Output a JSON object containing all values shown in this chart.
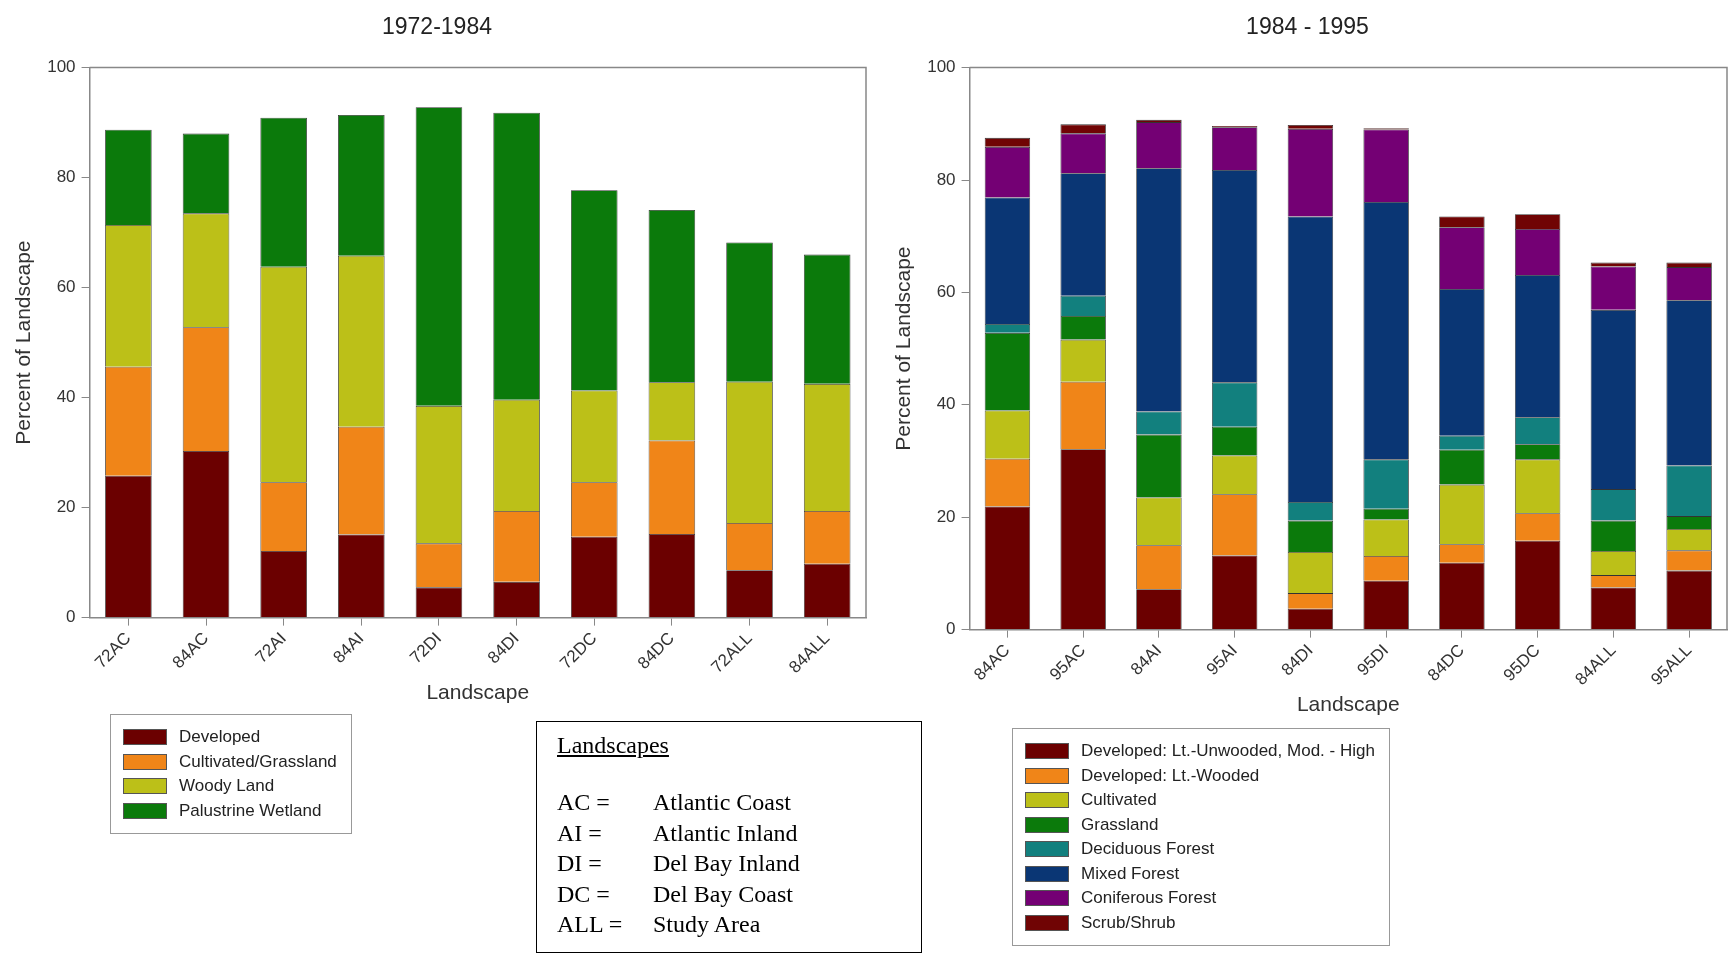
{
  "chart_data": [
    {
      "type": "bar",
      "title": "1972-1984",
      "xlabel": "Landscape",
      "ylabel": "Percent of Landscape",
      "stacked": true,
      "legend": "bottom left",
      "categories": [
        "72AC",
        "84AC",
        "72AI",
        "84AI",
        "72DI",
        "84DI",
        "72DC",
        "84DC",
        "72ALL",
        "84ALL"
      ],
      "ylim": [
        0,
        100
      ],
      "yticks": [
        0,
        20,
        40,
        60,
        80,
        100
      ],
      "series": [
        {
          "name": "Developed",
          "color": "#6b0000",
          "values": [
            25.8,
            30.3,
            12.1,
            15.1,
            5.5,
            6.5,
            14.7,
            15.2,
            8.6,
            9.8
          ]
        },
        {
          "name": "Cultivated/Grassland",
          "color": "#f08518",
          "values": [
            19.8,
            22.5,
            12.5,
            19.6,
            8.0,
            12.9,
            9.9,
            17.0,
            8.6,
            9.6
          ]
        },
        {
          "name": "Woody Land",
          "color": "#bcc018",
          "values": [
            25.8,
            20.7,
            39.2,
            31.1,
            25.0,
            20.2,
            16.7,
            10.6,
            25.7,
            23.1
          ]
        },
        {
          "name": "Palustrine Wetland",
          "color": "#0b7a0b",
          "values": [
            17.3,
            14.5,
            27.1,
            25.6,
            54.3,
            52.2,
            36.4,
            31.3,
            25.3,
            23.5
          ]
        }
      ]
    },
    {
      "type": "bar",
      "title": "1984 - 1995",
      "xlabel": "Landscape",
      "ylabel": "Percent of Landscape",
      "stacked": true,
      "legend": "bottom left",
      "categories": [
        "84AC",
        "95AC",
        "84AI",
        "95AI",
        "84DI",
        "95DI",
        "84DC",
        "95DC",
        "84ALL",
        "95ALL"
      ],
      "ylim": [
        0,
        100
      ],
      "yticks": [
        0,
        20,
        40,
        60,
        80,
        100
      ],
      "series": [
        {
          "name": "Developed: Lt.-Unwooded, Mod. - High",
          "color": "#6b0000",
          "values": [
            21.9,
            32.1,
            7.2,
            13.2,
            3.7,
            8.7,
            11.9,
            15.8,
            7.5,
            10.5
          ]
        },
        {
          "name": "Developed: Lt.-Wooded",
          "color": "#f08518",
          "values": [
            8.5,
            12.0,
            7.8,
            10.9,
            2.8,
            4.4,
            3.3,
            4.9,
            2.2,
            3.6
          ]
        },
        {
          "name": "Cultivated",
          "color": "#bcc018",
          "values": [
            8.6,
            7.5,
            8.5,
            6.9,
            7.3,
            6.5,
            10.6,
            9.6,
            4.3,
            3.8
          ]
        },
        {
          "name": "Grassland",
          "color": "#0b7a0b",
          "values": [
            13.8,
            4.2,
            11.2,
            5.1,
            5.6,
            1.9,
            6.2,
            2.7,
            5.4,
            2.3
          ]
        },
        {
          "name": "Deciduous Forest",
          "color": "#12807e",
          "values": [
            1.6,
            3.6,
            4.1,
            7.9,
            3.3,
            8.8,
            2.5,
            4.8,
            5.6,
            9.0
          ]
        },
        {
          "name": "Mixed Forest",
          "color": "#0a3674",
          "values": [
            22.5,
            21.8,
            43.3,
            37.8,
            50.8,
            45.8,
            26.1,
            25.3,
            31.9,
            29.4
          ]
        },
        {
          "name": "Coniferous Forest",
          "color": "#740074",
          "values": [
            9.0,
            7.1,
            8.2,
            7.6,
            15.6,
            12.9,
            11.0,
            8.2,
            7.7,
            5.9
          ]
        },
        {
          "name": "Scrub/Shrub",
          "color": "#700404",
          "values": [
            1.6,
            1.6,
            0.4,
            0.2,
            0.7,
            0.2,
            1.9,
            2.6,
            0.7,
            0.8
          ]
        }
      ]
    },
    {
      "type": "other",
      "title": "Landscapes",
      "annotations": [
        "AC = Atlantic Coast",
        "AI = Atlantic Inland",
        "DI = Del Bay Inland",
        "DC = Del Bay Coast",
        "ALL = Study Area"
      ]
    }
  ]
}
